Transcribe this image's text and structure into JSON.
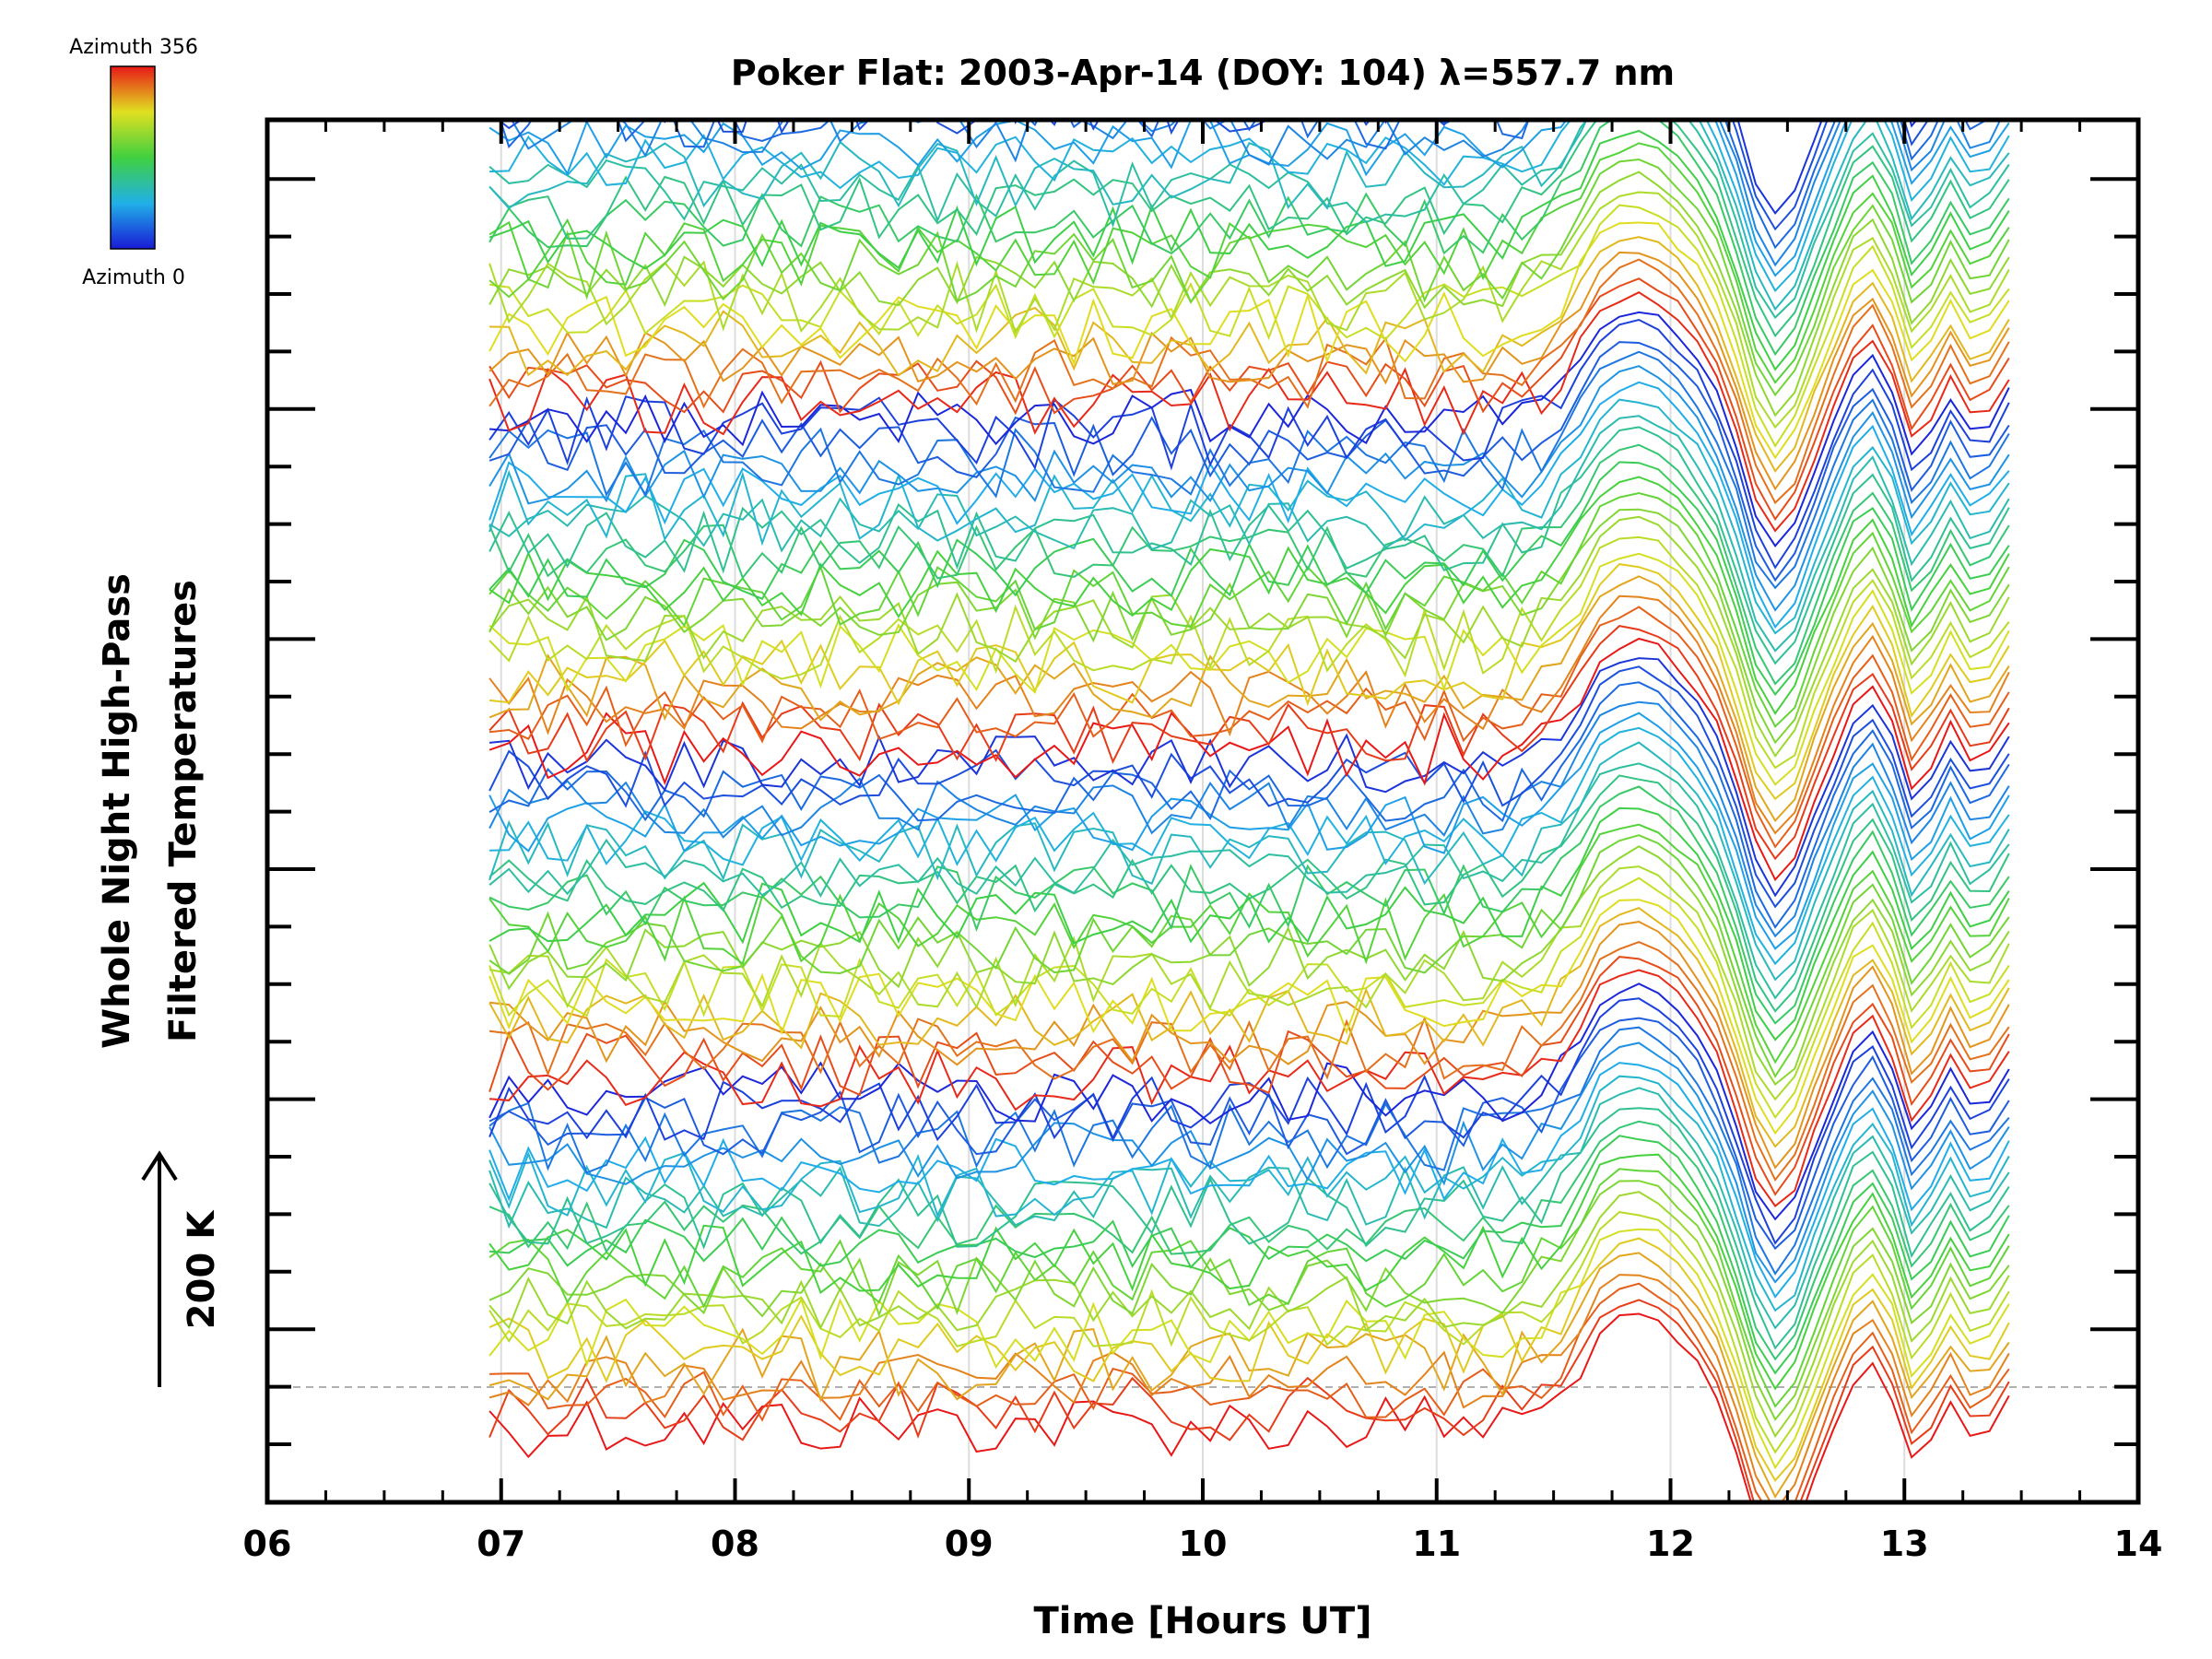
{
  "chart_data": {
    "type": "line",
    "title": "Poker Flat: 2003-Apr-14 (DOY: 104) λ=557.7 nm",
    "xlabel": "Time [Hours UT]",
    "ylabel_line1": "Whole Night High-Pass",
    "ylabel_line2": "Filtered Temperatures",
    "scale_label": "200 K",
    "scale_value_k": 200,
    "x_ticks": [
      "06",
      "07",
      "08",
      "09",
      "10",
      "11",
      "12",
      "13",
      "14"
    ],
    "xlim": [
      6,
      14
    ],
    "grid_x": true,
    "colorbar": {
      "top_label": "Azimuth 356",
      "bottom_label": "Azimuth 0",
      "colormap": "rainbow (blue → cyan → green → yellow → red)",
      "range": [
        0,
        356
      ]
    },
    "series_description_note": "",
    "series_count": 90,
    "x_start_hours": 6.95,
    "x_end_hours": 13.5,
    "sample_step_hours": 0.0833,
    "colors": {
      "blue": "#1a2bd6",
      "cyan": "#30b8e0",
      "green": "#3fcf3f",
      "yellow": "#d8d820",
      "red": "#e82020",
      "reference_line": "#aaaaaa",
      "grid": "#dddddd",
      "axis": "#000000"
    }
  }
}
